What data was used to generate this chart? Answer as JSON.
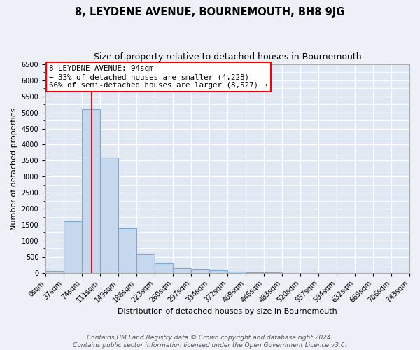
{
  "title": "8, LEYDENE AVENUE, BOURNEMOUTH, BH8 9JG",
  "subtitle": "Size of property relative to detached houses in Bournemouth",
  "xlabel": "Distribution of detached houses by size in Bournemouth",
  "ylabel": "Number of detached properties",
  "bin_labels": [
    "0sqm",
    "37sqm",
    "74sqm",
    "111sqm",
    "149sqm",
    "186sqm",
    "223sqm",
    "260sqm",
    "297sqm",
    "334sqm",
    "372sqm",
    "409sqm",
    "446sqm",
    "483sqm",
    "520sqm",
    "557sqm",
    "594sqm",
    "632sqm",
    "669sqm",
    "706sqm",
    "743sqm"
  ],
  "bar_heights": [
    60,
    1600,
    5100,
    3600,
    1400,
    580,
    290,
    150,
    100,
    80,
    30,
    10,
    5,
    3,
    2,
    1,
    0,
    0,
    0,
    0
  ],
  "bar_color": "#c5d8ee",
  "bar_edge_color": "#7aaad0",
  "red_line_x": 94,
  "annotation_text": "8 LEYDENE AVENUE: 94sqm\n← 33% of detached houses are smaller (4,228)\n66% of semi-detached houses are larger (8,527) →",
  "ylim": [
    0,
    6500
  ],
  "yticks": [
    0,
    500,
    1000,
    1500,
    2000,
    2500,
    3000,
    3500,
    4000,
    4500,
    5000,
    5500,
    6000,
    6500
  ],
  "bg_color": "#edf1f7",
  "plot_bg_color": "#e0e8f3",
  "grid_color": "#ffffff",
  "title_fontsize": 10.5,
  "subtitle_fontsize": 9,
  "axis_label_fontsize": 8,
  "tick_fontsize": 7,
  "annotation_fontsize": 7.8,
  "footer_fontsize": 6.5,
  "footer_line1": "Contains HM Land Registry data © Crown copyright and database right 2024.",
  "footer_line2": "Contains public sector information licensed under the Open Government Licence v3.0.",
  "bin_width": 37,
  "n_bars": 20
}
